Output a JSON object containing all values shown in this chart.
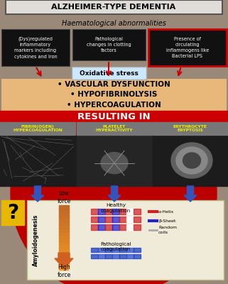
{
  "title": "ALZHEIMER-TYPE DEMENTIA",
  "subtitle": "Haematological abnormalities",
  "box1_text": "(Dys)regulated\ninflammatory\nmarkers including\ncytokines and Iron",
  "box2_text": "Pathological\nchanges in clotting\nfactors",
  "box3_text": "Presence of\ncirculating\ninflammogens like\nBacterial LPS",
  "oxidative_stress": "Oxidative stress",
  "bullets": "• VASCULAR DYSFUNCTION\n• HYPOFIBRINOLYSIS\n• HYPERCOAGULATION",
  "resulting_in": "RESULTING IN",
  "col1": "FIBRIN(OGEN)\nHYPERCOAGULATION",
  "col2": "PLATELET\nHYPERACTIVITY",
  "col3": "ERYTHROCYTE\nERYPTOSIS",
  "question_mark": "?",
  "amyloidogenesis": "Amyloidogenesis",
  "low_force": "Low\nforce",
  "high_force": "High\nforce",
  "healthy_coag": "Healthy\ncoagulation",
  "pathological_coag": "Pathological\ncoagulation",
  "legend_alpha": "α-Helix",
  "legend_beta": "β-Sheet",
  "legend_random": "Random\ncoils",
  "bg_color": "#9a8878",
  "title_bg": "#e0ddd8",
  "box_dark_bg": "#111111",
  "box3_border": "#cc0000",
  "orange_bg": "#e8b87a",
  "red_bar": "#cc0000",
  "col_label_bg": "#777777",
  "red_circle_color": "#bb0000",
  "blue_arrow_color": "#3355bb",
  "orange_arrow_color": "#e07830",
  "bottom_panel_bg": "#f0ead8",
  "question_bg": "#e8b800",
  "col_label_yellow": "#eeee00"
}
